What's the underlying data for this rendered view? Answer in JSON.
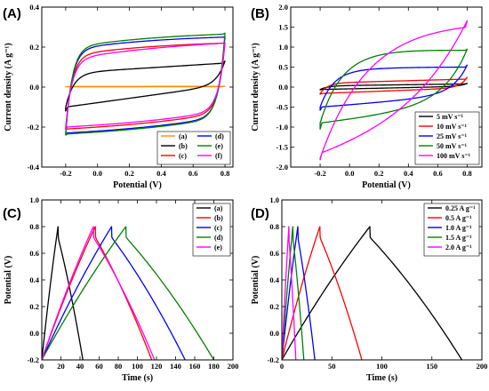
{
  "chart_data": [
    {
      "panel": "(A)",
      "type": "line",
      "xlabel": "Potential (V)",
      "ylabel": "Current density (A g⁻¹)",
      "xlim": [
        -0.35,
        0.85
      ],
      "ylim": [
        -0.4,
        0.4
      ],
      "xticks": [
        -0.2,
        0.0,
        0.2,
        0.4,
        0.6,
        0.8
      ],
      "xtick_labels": [
        "-0.2",
        "0.0",
        "0.2",
        "0.4",
        "0.6",
        "0.8"
      ],
      "yticks": [
        -0.4,
        -0.2,
        0.0,
        0.2,
        0.4
      ],
      "ytick_labels": [
        "-0.4",
        "-0.2",
        "0.0",
        "0.2",
        "0.4"
      ],
      "legend_position": "bottom-right",
      "legend_columns": 2,
      "curve_shape": "cv",
      "series": [
        {
          "name": "(a)",
          "color": "#ff8c00",
          "cv": {
            "x0": -0.2,
            "x1": 0.8,
            "i_top0": 0.003,
            "i_top1": 0.004,
            "i_bot0": 0.001,
            "i_bot1": 0.002,
            "peak_top": 0.004,
            "peak_bot": 0.002,
            "k": 0.02,
            "hump": 0
          }
        },
        {
          "name": "(b)",
          "color": "#000000",
          "cv": {
            "x0": -0.2,
            "x1": 0.8,
            "i_top0": 0.07,
            "i_top1": 0.12,
            "i_bot0": -0.1,
            "i_bot1": 0.01,
            "peak_top": 0.13,
            "peak_bot": -0.12,
            "k": 0.05,
            "hump": 0
          }
        },
        {
          "name": "(c)",
          "color": "#ff0000",
          "cv": {
            "x0": -0.2,
            "x1": 0.8,
            "i_top0": 0.16,
            "i_top1": 0.22,
            "i_bot0": -0.21,
            "i_bot1": -0.13,
            "peak_top": 0.22,
            "peak_bot": -0.21,
            "k": 0.04,
            "hump": 0.01
          }
        },
        {
          "name": "(d)",
          "color": "#0000ff",
          "cv": {
            "x0": -0.2,
            "x1": 0.8,
            "i_top0": 0.19,
            "i_top1": 0.25,
            "i_bot0": -0.23,
            "i_bot1": -0.15,
            "peak_top": 0.25,
            "peak_bot": -0.23,
            "k": 0.04,
            "hump": 0.01
          }
        },
        {
          "name": "(e)",
          "color": "#008000",
          "cv": {
            "x0": -0.2,
            "x1": 0.8,
            "i_top0": 0.2,
            "i_top1": 0.265,
            "i_bot0": -0.235,
            "i_bot1": -0.155,
            "peak_top": 0.27,
            "peak_bot": -0.24,
            "k": 0.04,
            "hump": 0.01
          }
        },
        {
          "name": "(f)",
          "color": "#ff00ff",
          "cv": {
            "x0": -0.2,
            "x1": 0.8,
            "i_top0": 0.14,
            "i_top1": 0.22,
            "i_bot0": -0.2,
            "i_bot1": -0.12,
            "peak_top": 0.22,
            "peak_bot": -0.21,
            "k": 0.04,
            "hump": 0.01
          }
        }
      ]
    },
    {
      "panel": "(B)",
      "type": "line",
      "xlabel": "Potential (V)",
      "ylabel": "Current density (A g⁻¹)",
      "xlim": [
        -0.4,
        0.9
      ],
      "ylim": [
        -2.0,
        2.0
      ],
      "xticks": [
        -0.2,
        0.0,
        0.2,
        0.4,
        0.6,
        0.8
      ],
      "xtick_labels": [
        "-0.2",
        "0.0",
        "0.2",
        "0.4",
        "0.6",
        "0.8"
      ],
      "yticks": [
        -2.0,
        -1.5,
        -1.0,
        -0.5,
        0.0,
        0.5,
        1.0,
        1.5,
        2.0
      ],
      "ytick_labels": [
        "-2.0",
        "-1.5",
        "-1.0",
        "-0.5",
        "0.0",
        "0.5",
        "1.0",
        "1.5",
        "2.0"
      ],
      "legend_position": "bottom-right",
      "legend_columns": 1,
      "curve_shape": "cv",
      "series": [
        {
          "name": "5 mV s⁻¹",
          "color": "#000000",
          "cv": {
            "x0": -0.2,
            "x1": 0.8,
            "i_top0": 0.03,
            "i_top1": 0.08,
            "i_bot0": -0.06,
            "i_bot1": 0.02,
            "peak_top": 0.09,
            "peak_bot": -0.07,
            "k": 0.05,
            "hump": 0
          }
        },
        {
          "name": "10 mV s⁻¹",
          "color": "#ff0000",
          "cv": {
            "x0": -0.2,
            "x1": 0.8,
            "i_top0": 0.1,
            "i_top1": 0.2,
            "i_bot0": -0.16,
            "i_bot1": -0.02,
            "peak_top": 0.24,
            "peak_bot": -0.18,
            "k": 0.05,
            "hump": 0
          }
        },
        {
          "name": "25 mV s⁻¹",
          "color": "#0000ff",
          "cv": {
            "x0": -0.2,
            "x1": 0.8,
            "i_top0": 0.42,
            "i_top1": 0.5,
            "i_bot0": -0.5,
            "i_bot1": -0.15,
            "peak_top": 0.55,
            "peak_bot": -0.58,
            "k": 0.09,
            "hump": 0.02
          }
        },
        {
          "name": "50 mV s⁻¹",
          "color": "#008000",
          "cv": {
            "x0": -0.2,
            "x1": 0.8,
            "i_top0": 0.82,
            "i_top1": 0.92,
            "i_bot0": -0.9,
            "i_bot1": -0.3,
            "peak_top": 0.95,
            "peak_bot": -1.05,
            "k": 0.14,
            "hump": 0.04
          }
        },
        {
          "name": "100 mV s⁻¹",
          "color": "#ff00ff",
          "cv": {
            "x0": -0.2,
            "x1": 0.8,
            "i_top0": 1.4,
            "i_top1": 1.62,
            "i_bot0": -1.78,
            "i_bot1": -0.55,
            "peak_top": 1.66,
            "peak_bot": -1.82,
            "k": 0.3,
            "hump": 0.05
          }
        }
      ]
    },
    {
      "panel": "(C)",
      "type": "line",
      "xlabel": "Time (s)",
      "ylabel": "Potential (V)",
      "xlim": [
        0,
        200
      ],
      "ylim": [
        -0.2,
        1.0
      ],
      "xticks": [
        0,
        20,
        40,
        60,
        80,
        100,
        120,
        140,
        160,
        180,
        200
      ],
      "xtick_labels": [
        "0",
        "20",
        "40",
        "60",
        "80",
        "100",
        "120",
        "140",
        "160",
        "180",
        "200"
      ],
      "yticks": [
        -0.2,
        0.0,
        0.2,
        0.4,
        0.6,
        0.8,
        1.0
      ],
      "ytick_labels": [
        "-0.2",
        "0.0",
        "0.2",
        "0.4",
        "0.6",
        "0.8",
        "1.0"
      ],
      "legend_position": "top-right",
      "legend_columns": 1,
      "curve_shape": "gcd",
      "series": [
        {
          "name": "(a)",
          "color": "#000000",
          "gcd": {
            "t_peak": 17,
            "t_end": 43,
            "v_min": -0.2,
            "v_max": 0.8
          }
        },
        {
          "name": "(b)",
          "color": "#ff0000",
          "gcd": {
            "t_peak": 56,
            "t_end": 115,
            "v_min": -0.2,
            "v_max": 0.8
          }
        },
        {
          "name": "(c)",
          "color": "#0000ff",
          "gcd": {
            "t_peak": 73,
            "t_end": 150,
            "v_min": -0.2,
            "v_max": 0.8
          }
        },
        {
          "name": "(d)",
          "color": "#008000",
          "gcd": {
            "t_peak": 88,
            "t_end": 180,
            "v_min": -0.2,
            "v_max": 0.8
          }
        },
        {
          "name": "(e)",
          "color": "#ff00ff",
          "gcd": {
            "t_peak": 54,
            "t_end": 118,
            "v_min": -0.2,
            "v_max": 0.8
          }
        }
      ]
    },
    {
      "panel": "(D)",
      "type": "line",
      "xlabel": "Time (s)",
      "ylabel": "Potential (V)",
      "xlim": [
        0,
        200
      ],
      "ylim": [
        -0.2,
        1.0
      ],
      "xticks": [
        0,
        50,
        100,
        150,
        200
      ],
      "xtick_labels": [
        "0",
        "50",
        "100",
        "150",
        "200"
      ],
      "yticks": [
        -0.2,
        0.0,
        0.2,
        0.4,
        0.6,
        0.8,
        1.0
      ],
      "ytick_labels": [
        "-0.2",
        "0.0",
        "0.2",
        "0.4",
        "0.6",
        "0.8",
        "1.0"
      ],
      "legend_position": "top-right",
      "legend_columns": 1,
      "curve_shape": "gcd",
      "series": [
        {
          "name": "0.25 A g⁻¹",
          "color": "#000000",
          "gcd": {
            "t_peak": 88,
            "t_end": 180,
            "v_min": -0.2,
            "v_max": 0.8
          }
        },
        {
          "name": "0.5 A g⁻¹",
          "color": "#ff0000",
          "gcd": {
            "t_peak": 38,
            "t_end": 80,
            "v_min": -0.2,
            "v_max": 0.8
          }
        },
        {
          "name": "1.0 A g⁻¹",
          "color": "#0000ff",
          "gcd": {
            "t_peak": 16,
            "t_end": 33,
            "v_min": -0.2,
            "v_max": 0.8
          }
        },
        {
          "name": "1.5 A g⁻¹",
          "color": "#008000",
          "gcd": {
            "t_peak": 11,
            "t_end": 22,
            "v_min": -0.2,
            "v_max": 0.8
          }
        },
        {
          "name": "2.0 A g⁻¹",
          "color": "#ff00ff",
          "gcd": {
            "t_peak": 7,
            "t_end": 14,
            "v_min": -0.2,
            "v_max": 0.8
          }
        }
      ]
    }
  ]
}
